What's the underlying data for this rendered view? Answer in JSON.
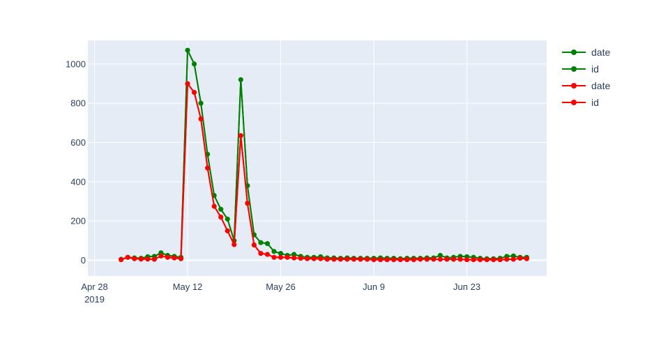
{
  "chart_data": {
    "type": "line",
    "title": "",
    "xlabel": "",
    "ylabel": "",
    "x_start": "2019-05-02",
    "xlim": [
      "2019-04-27",
      "2019-07-05"
    ],
    "ylim": [
      -80,
      1120
    ],
    "x_ticks": [
      {
        "date": "2019-04-28",
        "label": "Apr 28",
        "sublabel": "2019"
      },
      {
        "date": "2019-05-12",
        "label": "May 12",
        "sublabel": ""
      },
      {
        "date": "2019-05-26",
        "label": "May 26",
        "sublabel": ""
      },
      {
        "date": "2019-06-09",
        "label": "Jun 9",
        "sublabel": ""
      },
      {
        "date": "2019-06-23",
        "label": "Jun 23",
        "sublabel": ""
      }
    ],
    "y_ticks": [
      0,
      200,
      400,
      600,
      800,
      1000
    ],
    "y_tick_labels": [
      "0",
      "200",
      "400",
      "600",
      "800",
      "1000"
    ],
    "grid": true,
    "legend_position": "top-right",
    "series": [
      {
        "name": "date",
        "color": "#008000",
        "values": [
          5,
          15,
          12,
          10,
          18,
          20,
          38,
          25,
          20,
          15,
          1070,
          1000,
          800,
          540,
          330,
          260,
          210,
          100,
          920,
          380,
          130,
          90,
          85,
          45,
          35,
          25,
          30,
          20,
          15,
          15,
          18,
          12,
          12,
          10,
          12,
          10,
          10,
          10,
          10,
          12,
          10,
          10,
          8,
          10,
          10,
          10,
          12,
          12,
          25,
          12,
          15,
          20,
          18,
          15,
          10,
          8,
          8,
          10,
          20,
          22,
          15,
          15
        ]
      },
      {
        "name": "id",
        "color": "#008000",
        "values": [
          5,
          15,
          12,
          10,
          18,
          20,
          38,
          25,
          20,
          15,
          1070,
          1000,
          800,
          540,
          330,
          260,
          210,
          100,
          920,
          380,
          130,
          90,
          85,
          45,
          35,
          25,
          30,
          20,
          15,
          15,
          18,
          12,
          12,
          10,
          12,
          10,
          10,
          10,
          10,
          12,
          10,
          10,
          8,
          10,
          10,
          10,
          12,
          12,
          25,
          12,
          15,
          20,
          18,
          15,
          10,
          8,
          8,
          10,
          20,
          22,
          15,
          15
        ]
      },
      {
        "name": "date",
        "color": "#ff0000",
        "values": [
          3,
          15,
          8,
          6,
          6,
          5,
          22,
          15,
          12,
          8,
          900,
          855,
          720,
          470,
          275,
          220,
          150,
          80,
          635,
          290,
          78,
          35,
          30,
          15,
          15,
          15,
          12,
          10,
          8,
          8,
          8,
          5,
          5,
          5,
          5,
          5,
          5,
          5,
          3,
          3,
          3,
          3,
          3,
          3,
          3,
          5,
          5,
          5,
          5,
          5,
          5,
          5,
          3,
          3,
          3,
          3,
          3,
          3,
          5,
          5,
          10,
          8
        ]
      },
      {
        "name": "id",
        "color": "#ff0000",
        "values": [
          3,
          15,
          8,
          6,
          6,
          5,
          22,
          15,
          12,
          8,
          900,
          855,
          720,
          470,
          275,
          220,
          150,
          80,
          635,
          290,
          78,
          35,
          30,
          15,
          15,
          15,
          12,
          10,
          8,
          8,
          8,
          5,
          5,
          5,
          5,
          5,
          5,
          5,
          3,
          3,
          3,
          3,
          3,
          3,
          3,
          5,
          5,
          5,
          5,
          5,
          5,
          5,
          3,
          3,
          3,
          3,
          3,
          3,
          5,
          5,
          10,
          8
        ]
      }
    ]
  }
}
